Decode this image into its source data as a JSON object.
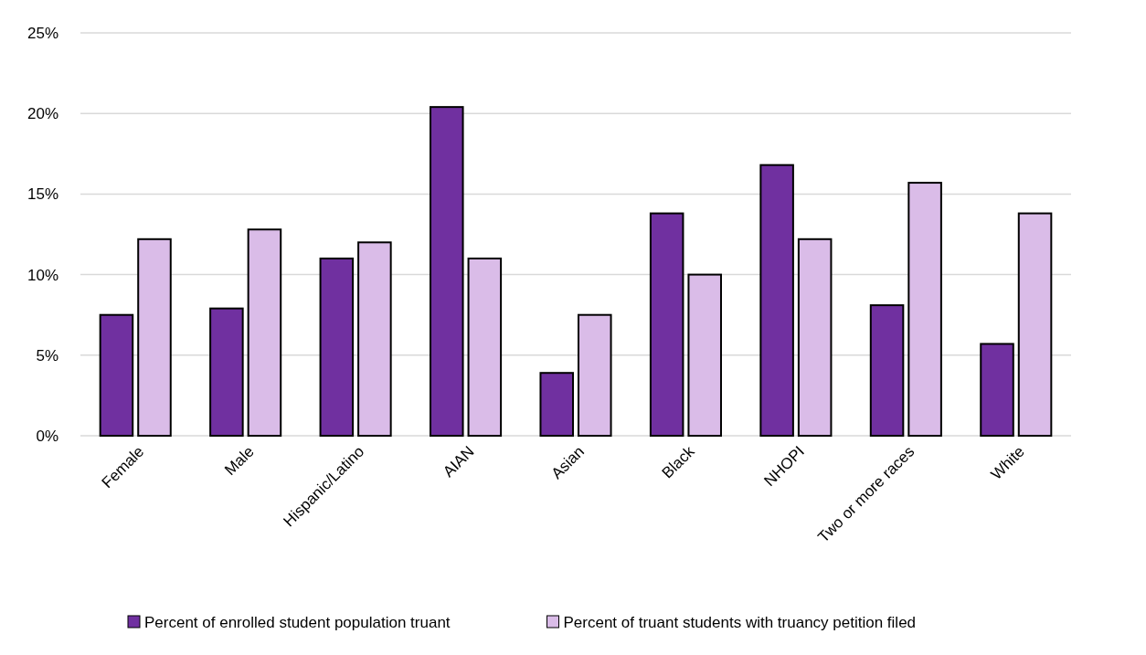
{
  "chart_data": {
    "type": "bar",
    "categories": [
      "Female",
      "Male",
      "Hispanic/Latino",
      "AIAN",
      "Asian",
      "Black",
      "NHOPI",
      "Two or more races",
      "White"
    ],
    "series": [
      {
        "name": "Percent of enrolled student population truant",
        "color": "#7030a0",
        "values": [
          7.5,
          7.9,
          11.0,
          20.4,
          3.9,
          13.8,
          16.8,
          8.1,
          5.7
        ]
      },
      {
        "name": "Percent of truant students with truancy petition filed",
        "color": "#dabce8",
        "values": [
          12.2,
          12.8,
          12.0,
          11.0,
          7.5,
          10.0,
          12.2,
          15.7,
          13.8
        ]
      }
    ],
    "ylim": [
      0,
      25
    ],
    "yticks": [
      {
        "value": 0,
        "label": "0%"
      },
      {
        "value": 5,
        "label": "5%"
      },
      {
        "value": 10,
        "label": "10%"
      },
      {
        "value": 15,
        "label": "15%"
      },
      {
        "value": 20,
        "label": "20%"
      },
      {
        "value": 25,
        "label": "25%"
      }
    ],
    "grid": "y",
    "legend": "bottom"
  }
}
